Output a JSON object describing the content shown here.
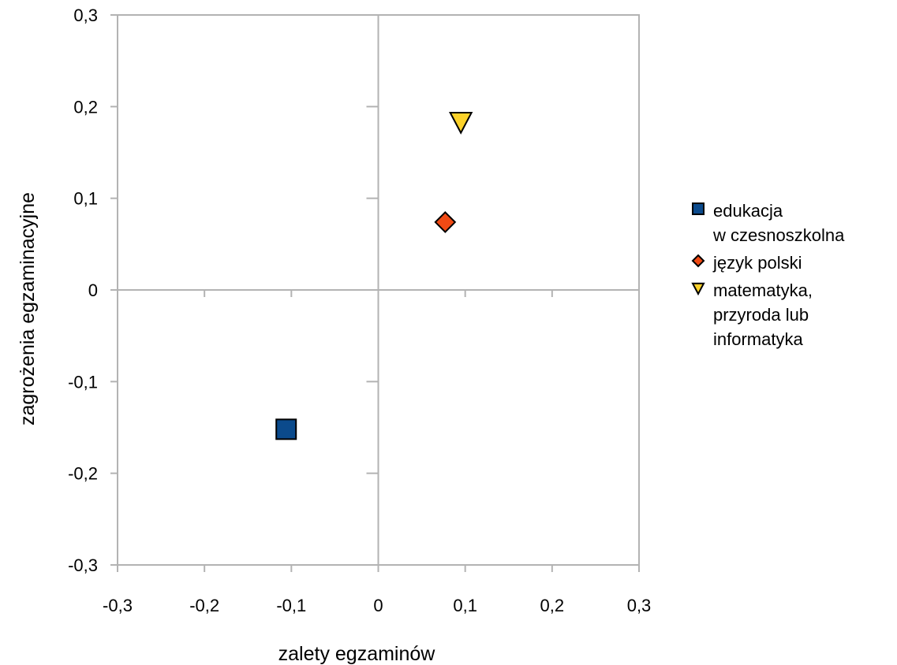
{
  "chart_data": {
    "type": "scatter",
    "xlabel": "zalety egzaminów",
    "ylabel": "zagrożenia egzaminacyjne",
    "xlim": [
      -0.3,
      0.3
    ],
    "ylim": [
      -0.3,
      0.3
    ],
    "x_ticks": [
      -0.3,
      -0.2,
      -0.1,
      0,
      0.1,
      0.2,
      0.3
    ],
    "y_ticks": [
      -0.3,
      -0.2,
      -0.1,
      0,
      0.1,
      0.2,
      0.3
    ],
    "x_tick_labels": [
      "-0,3",
      "-0,2",
      "-0,1",
      "0",
      "0,1",
      "0,2",
      "0,3"
    ],
    "y_tick_labels": [
      "-0,3",
      "-0,2",
      "-0,1",
      "0",
      "0,1",
      "0,2",
      "0,3"
    ],
    "grid": false,
    "legend_position": "right",
    "series": [
      {
        "name": "edukacja wczesnoszkolna",
        "legend_lines": [
          "edukacja",
          "w czesnoszkolna"
        ],
        "marker": "square",
        "color": "#0b4a8c",
        "points": [
          {
            "x": -0.106,
            "y": -0.152
          }
        ]
      },
      {
        "name": "język polski",
        "legend_lines": [
          "język polski"
        ],
        "marker": "diamond",
        "color": "#f04a14",
        "points": [
          {
            "x": 0.077,
            "y": 0.074
          }
        ]
      },
      {
        "name": "matematyka, przyroda lub informatyka",
        "legend_lines": [
          "matematyka,",
          "przyroda lub",
          "informatyka"
        ],
        "marker": "triangle-down",
        "color": "#fcd22a",
        "points": [
          {
            "x": 0.095,
            "y": 0.183
          }
        ]
      }
    ]
  },
  "colors": {
    "axis_line": "#b3b3b3",
    "marker_stroke": "#000000"
  }
}
